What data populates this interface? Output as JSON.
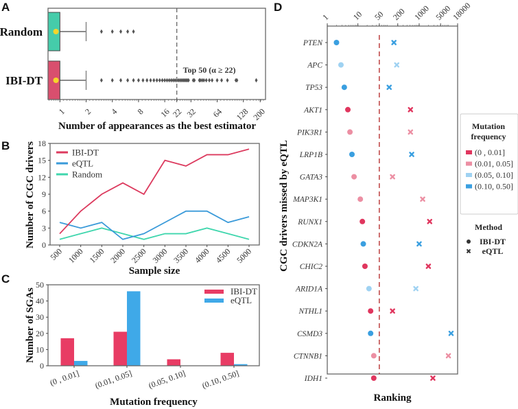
{
  "chart_data": [
    {
      "panel": "A",
      "type": "box",
      "xlabel": "Number of appearances as the best estimator",
      "xscale": "log2",
      "xlim": [
        0.73,
        230
      ],
      "xticks": [
        1,
        2,
        4,
        8,
        16,
        22,
        32,
        64,
        128,
        200
      ],
      "reference_line": {
        "value": 22,
        "label": "Top 50 (α ≥ 22)"
      },
      "groups": [
        {
          "name": "Random",
          "color": "#45ccaa",
          "q1": 0.73,
          "q3": 1,
          "mean": 0.9,
          "whisker_high": 2,
          "outliers": [
            3,
            4,
            5,
            6,
            7
          ]
        },
        {
          "name": "IBI-DT",
          "color": "#d94f6e",
          "q1": 0.73,
          "q3": 1,
          "mean": 0.9,
          "whisker_high": 2,
          "outliers": [
            3,
            4,
            5,
            6,
            7,
            8,
            9,
            10,
            11,
            12,
            13,
            14,
            15,
            16,
            17,
            18,
            19,
            20,
            21,
            22,
            23,
            24,
            25,
            26,
            27,
            28,
            29,
            30,
            34,
            35,
            40,
            41,
            43,
            45,
            48,
            52,
            56,
            64,
            72,
            84,
            105,
            108,
            180
          ]
        }
      ],
      "mean_marker_color": "#f5d52a"
    },
    {
      "panel": "B",
      "type": "line",
      "xlabel": "Sample size",
      "ylabel": "Number of CGC drivers",
      "categories": [
        "500",
        "1000",
        "1500",
        "2000",
        "2500",
        "3000",
        "3500",
        "4000",
        "4500",
        "5000"
      ],
      "ylim": [
        0,
        18
      ],
      "yticks": [
        0,
        3,
        6,
        9,
        12,
        15,
        18
      ],
      "legend": "top-left",
      "series": [
        {
          "name": "IBI-DT",
          "color": "#dc3a5e",
          "values": [
            2,
            6,
            9,
            11,
            9,
            15,
            14,
            16,
            16,
            17
          ]
        },
        {
          "name": "eQTL",
          "color": "#3a9ad9",
          "values": [
            4,
            3,
            4,
            1,
            2,
            4,
            6,
            6,
            4,
            5
          ]
        },
        {
          "name": "Random",
          "color": "#3fd6ad",
          "values": [
            1,
            2,
            3,
            2,
            1,
            2,
            2,
            3,
            2,
            1
          ]
        }
      ]
    },
    {
      "panel": "C",
      "type": "bar",
      "xlabel": "Mutation frequency",
      "ylabel": "Number of SGAs",
      "categories": [
        "(0 , 0.01]",
        "(0.01, 0.05]",
        "(0.05, 0.10]",
        "(0.10, 0.50]"
      ],
      "ylim": [
        0,
        50
      ],
      "yticks": [
        0,
        10,
        20,
        30,
        40,
        50
      ],
      "legend": "top-right",
      "series": [
        {
          "name": "IBI-DT",
          "color": "#e83c64",
          "values": [
            17,
            21,
            4,
            8
          ]
        },
        {
          "name": "eQTL",
          "color": "#3fa9e8",
          "values": [
            3,
            46,
            0,
            1
          ]
        }
      ]
    },
    {
      "panel": "D",
      "type": "scatter",
      "xlabel": "Ranking",
      "ylabel": "CGC drivers missed by eQTL",
      "xscale": "log10",
      "xlim": [
        1,
        18000
      ],
      "xticks": [
        1,
        10,
        50,
        200,
        1000,
        5000,
        18000
      ],
      "reference_line": {
        "value": 50
      },
      "freq_legend_title": "Mutation frequency",
      "method_legend_title": "Method",
      "freq_classes": [
        {
          "label": "(0 , 0.01]",
          "color": "#e0365e"
        },
        {
          "label": "(0.01, 0.05]",
          "color": "#ec8fa3"
        },
        {
          "label": "(0.05, 0.10]",
          "color": "#9fd2f2"
        },
        {
          "label": "(0.10, 0.50]",
          "color": "#3a9fe0"
        }
      ],
      "methods": [
        {
          "label": "IBI-DT",
          "marker": "circle"
        },
        {
          "label": "eQTL",
          "marker": "x"
        }
      ],
      "genes": [
        {
          "name": "PTEN",
          "freq_class": 3,
          "ibidt": 2,
          "eqtl": 150
        },
        {
          "name": "APC",
          "freq_class": 2,
          "ibidt": 2.8,
          "eqtl": 185
        },
        {
          "name": "TP53",
          "freq_class": 3,
          "ibidt": 3.6,
          "eqtl": 105
        },
        {
          "name": "AKT1",
          "freq_class": 0,
          "ibidt": 4.7,
          "eqtl": 520
        },
        {
          "name": "PIK3R1",
          "freq_class": 1,
          "ibidt": 5.5,
          "eqtl": 520
        },
        {
          "name": "LRP1B",
          "freq_class": 3,
          "ibidt": 6.4,
          "eqtl": 570
        },
        {
          "name": "GATA3",
          "freq_class": 1,
          "ibidt": 7.5,
          "eqtl": 135
        },
        {
          "name": "MAP3K1",
          "freq_class": 1,
          "ibidt": 12,
          "eqtl": 1300
        },
        {
          "name": "RUNX1",
          "freq_class": 0,
          "ibidt": 14,
          "eqtl": 2200
        },
        {
          "name": "CDKN2A",
          "freq_class": 3,
          "ibidt": 15,
          "eqtl": 1000
        },
        {
          "name": "CHIC2",
          "freq_class": 0,
          "ibidt": 17,
          "eqtl": 2000
        },
        {
          "name": "ARID1A",
          "freq_class": 2,
          "ibidt": 23,
          "eqtl": 780
        },
        {
          "name": "NTHL1",
          "freq_class": 0,
          "ibidt": 26,
          "eqtl": 135
        },
        {
          "name": "CSMD3",
          "freq_class": 3,
          "ibidt": 26,
          "eqtl": 11000
        },
        {
          "name": "CTNNB1",
          "freq_class": 1,
          "ibidt": 33,
          "eqtl": 9000
        },
        {
          "name": "IDH1",
          "freq_class": 0,
          "ibidt": 33,
          "eqtl": 2800
        }
      ]
    }
  ],
  "panels": {
    "a": "A",
    "b": "B",
    "c": "C",
    "d": "D"
  }
}
